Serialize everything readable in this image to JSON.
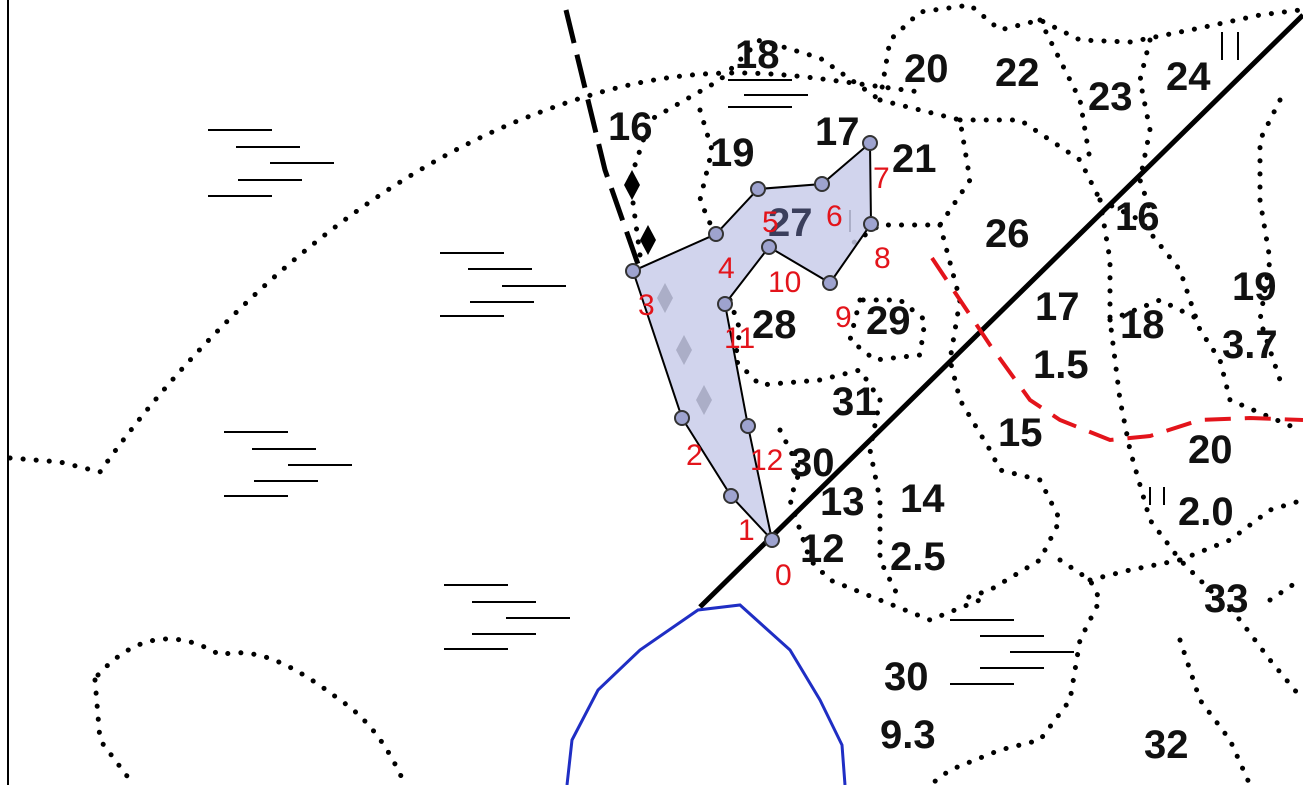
{
  "map": {
    "colors": {
      "boundary_dots": "#000000",
      "road_line": "#000000",
      "red_dashed": "#e3141b",
      "blue_outline": "#1f2ec4",
      "selection_fill": "#c9cdea",
      "vertex_fill": "#9ea3cf",
      "vertex_label": "#e3141b"
    },
    "plot_labels": [
      "18",
      "20",
      "22",
      "23",
      "24",
      "16",
      "19",
      "17",
      "21",
      "27",
      "26",
      "16",
      "19",
      "3.7",
      "28",
      "29",
      "17",
      "1.5",
      "18",
      "31",
      "15",
      "20",
      "30",
      "13",
      "14",
      "2.0",
      "12",
      "2.5",
      "33",
      "30",
      "9.3",
      "32"
    ],
    "vertex_labels": [
      "0",
      "1",
      "2",
      "3",
      "4",
      "5",
      "6",
      "7",
      "8",
      "9",
      "10",
      "11",
      "12"
    ],
    "icons": {
      "vertex_marker": "circle-marker-icon",
      "marsh_symbol": "horizontal-hatch-icon",
      "diamond_symbol": "diamond-icon"
    }
  }
}
